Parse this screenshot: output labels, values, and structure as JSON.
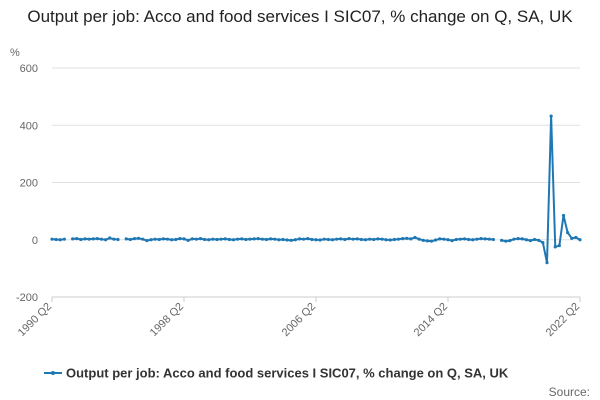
{
  "chart_data": {
    "type": "line",
    "title": "Output per job: Acco and food services I SIC07, % change on Q, SA, UK",
    "y_label": "%",
    "source": "Source:",
    "categories": [
      "1990 Q2",
      null,
      null,
      null,
      null,
      null,
      null,
      null,
      null,
      null,
      null,
      null,
      null,
      null,
      null,
      null,
      null,
      null,
      null,
      null,
      null,
      null,
      null,
      null,
      null,
      null,
      null,
      null,
      null,
      null,
      null,
      null,
      "1998 Q2",
      null,
      null,
      null,
      null,
      null,
      null,
      null,
      null,
      null,
      null,
      null,
      null,
      null,
      null,
      null,
      null,
      null,
      null,
      null,
      null,
      null,
      null,
      null,
      null,
      null,
      null,
      null,
      null,
      null,
      null,
      null,
      "2006 Q2",
      null,
      null,
      null,
      null,
      null,
      null,
      null,
      null,
      null,
      null,
      null,
      null,
      null,
      null,
      null,
      null,
      null,
      null,
      null,
      null,
      null,
      null,
      null,
      null,
      null,
      null,
      null,
      null,
      null,
      null,
      null,
      "2014 Q2",
      null,
      null,
      null,
      null,
      null,
      null,
      null,
      null,
      null,
      null,
      null,
      null,
      null,
      null,
      null,
      null,
      null,
      null,
      null,
      null,
      null,
      null,
      null,
      null,
      null,
      null,
      null,
      null,
      null,
      null,
      null,
      "2022 Q2"
    ],
    "series": [
      {
        "name": "Output per job: Acco and food services I SIC07, % change on Q, SA, UK",
        "color": "#1f78b4",
        "values": [
          2,
          1,
          0,
          2,
          null,
          3,
          4,
          1,
          3,
          2,
          3,
          4,
          2,
          0,
          6,
          2,
          1,
          null,
          3,
          1,
          4,
          5,
          2,
          -3,
          0,
          2,
          1,
          3,
          2,
          0,
          1,
          4,
          3,
          -2,
          3,
          2,
          4,
          1,
          0,
          2,
          1,
          2,
          3,
          1,
          0,
          2,
          3,
          1,
          2,
          3,
          4,
          2,
          1,
          3,
          2,
          0,
          1,
          -1,
          -2,
          0,
          3,
          2,
          4,
          1,
          0,
          -1,
          2,
          1,
          0,
          2,
          3,
          1,
          4,
          2,
          3,
          1,
          0,
          2,
          1,
          3,
          2,
          0,
          -1,
          1,
          2,
          4,
          5,
          3,
          8,
          2,
          -2,
          -4,
          -5,
          -1,
          3,
          2,
          0,
          -3,
          1,
          2,
          3,
          1,
          0,
          2,
          4,
          3,
          2,
          1,
          null,
          -2,
          -5,
          -3,
          2,
          4,
          3,
          0,
          -3,
          1,
          -2,
          -10,
          -80,
          432,
          -25,
          -20,
          85,
          25,
          5,
          8,
          0
        ]
      }
    ],
    "ylim": [
      -200,
      600
    ],
    "yticks": [
      -200,
      0,
      200,
      400,
      600
    ],
    "grid": true,
    "legend": "bottom"
  }
}
